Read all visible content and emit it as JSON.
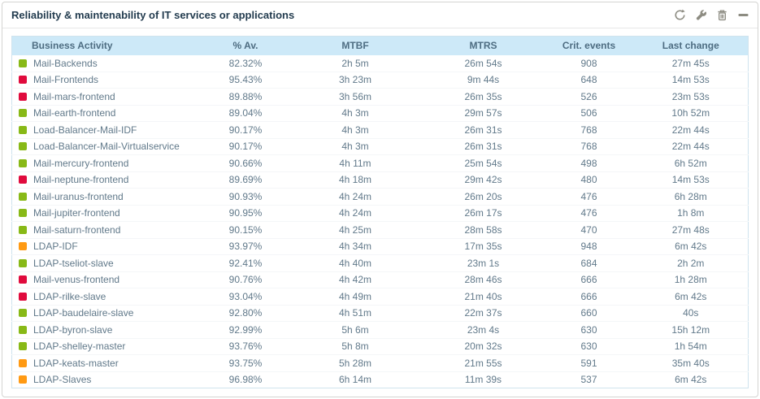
{
  "panel": {
    "title": "Reliability & maintenability of IT services or applications",
    "toolbar": {
      "refresh": "refresh",
      "configure": "configure",
      "delete": "delete",
      "collapse": "collapse"
    }
  },
  "colors": {
    "ok": "#88b917",
    "critical": "#e00b3d",
    "warning": "#ff9a13",
    "header_bg": "#cde9f8",
    "icon": "#8d8c82"
  },
  "table": {
    "columns": [
      "Business Activity",
      "% Av.",
      "MTBF",
      "MTRS",
      "Crit. events",
      "Last change"
    ],
    "rows": [
      {
        "status": "ok",
        "name": "Mail-Backends",
        "av": "82.32%",
        "mtbf": "2h 5m",
        "mtrs": "26m 54s",
        "crit": "908",
        "last": "27m 45s"
      },
      {
        "status": "critical",
        "name": "Mail-Frontends",
        "av": "95.43%",
        "mtbf": "3h 23m",
        "mtrs": "9m 44s",
        "crit": "648",
        "last": "14m 53s"
      },
      {
        "status": "critical",
        "name": "Mail-mars-frontend",
        "av": "89.88%",
        "mtbf": "3h 56m",
        "mtrs": "26m 35s",
        "crit": "526",
        "last": "23m 53s"
      },
      {
        "status": "ok",
        "name": "Mail-earth-frontend",
        "av": "89.04%",
        "mtbf": "4h 3m",
        "mtrs": "29m 57s",
        "crit": "506",
        "last": "10h 52m"
      },
      {
        "status": "ok",
        "name": "Load-Balancer-Mail-IDF",
        "av": "90.17%",
        "mtbf": "4h 3m",
        "mtrs": "26m 31s",
        "crit": "768",
        "last": "22m 44s"
      },
      {
        "status": "ok",
        "name": "Load-Balancer-Mail-Virtualservice",
        "av": "90.17%",
        "mtbf": "4h 3m",
        "mtrs": "26m 31s",
        "crit": "768",
        "last": "22m 44s"
      },
      {
        "status": "ok",
        "name": "Mail-mercury-frontend",
        "av": "90.66%",
        "mtbf": "4h 11m",
        "mtrs": "25m 54s",
        "crit": "498",
        "last": "6h 52m"
      },
      {
        "status": "critical",
        "name": "Mail-neptune-frontend",
        "av": "89.69%",
        "mtbf": "4h 18m",
        "mtrs": "29m 42s",
        "crit": "480",
        "last": "14m 53s"
      },
      {
        "status": "ok",
        "name": "Mail-uranus-frontend",
        "av": "90.93%",
        "mtbf": "4h 24m",
        "mtrs": "26m 20s",
        "crit": "476",
        "last": "6h 28m"
      },
      {
        "status": "ok",
        "name": "Mail-jupiter-frontend",
        "av": "90.95%",
        "mtbf": "4h 24m",
        "mtrs": "26m 17s",
        "crit": "476",
        "last": "1h 8m"
      },
      {
        "status": "ok",
        "name": "Mail-saturn-frontend",
        "av": "90.15%",
        "mtbf": "4h 25m",
        "mtrs": "28m 58s",
        "crit": "470",
        "last": "27m 48s"
      },
      {
        "status": "warning",
        "name": "LDAP-IDF",
        "av": "93.97%",
        "mtbf": "4h 34m",
        "mtrs": "17m 35s",
        "crit": "948",
        "last": "6m 42s"
      },
      {
        "status": "ok",
        "name": "LDAP-tseliot-slave",
        "av": "92.41%",
        "mtbf": "4h 40m",
        "mtrs": "23m 1s",
        "crit": "684",
        "last": "2h 2m"
      },
      {
        "status": "critical",
        "name": "Mail-venus-frontend",
        "av": "90.76%",
        "mtbf": "4h 42m",
        "mtrs": "28m 46s",
        "crit": "666",
        "last": "1h 28m"
      },
      {
        "status": "critical",
        "name": "LDAP-rilke-slave",
        "av": "93.04%",
        "mtbf": "4h 49m",
        "mtrs": "21m 40s",
        "crit": "666",
        "last": "6m 42s"
      },
      {
        "status": "ok",
        "name": "LDAP-baudelaire-slave",
        "av": "92.80%",
        "mtbf": "4h 51m",
        "mtrs": "22m 37s",
        "crit": "660",
        "last": "40s"
      },
      {
        "status": "ok",
        "name": "LDAP-byron-slave",
        "av": "92.99%",
        "mtbf": "5h 6m",
        "mtrs": "23m 4s",
        "crit": "630",
        "last": "15h 12m"
      },
      {
        "status": "ok",
        "name": "LDAP-shelley-master",
        "av": "93.76%",
        "mtbf": "5h 8m",
        "mtrs": "20m 32s",
        "crit": "630",
        "last": "1h 54m"
      },
      {
        "status": "warning",
        "name": "LDAP-keats-master",
        "av": "93.75%",
        "mtbf": "5h 28m",
        "mtrs": "21m 55s",
        "crit": "591",
        "last": "35m 40s"
      },
      {
        "status": "warning",
        "name": "LDAP-Slaves",
        "av": "96.98%",
        "mtbf": "6h 14m",
        "mtrs": "11m 39s",
        "crit": "537",
        "last": "6m 42s"
      }
    ]
  }
}
